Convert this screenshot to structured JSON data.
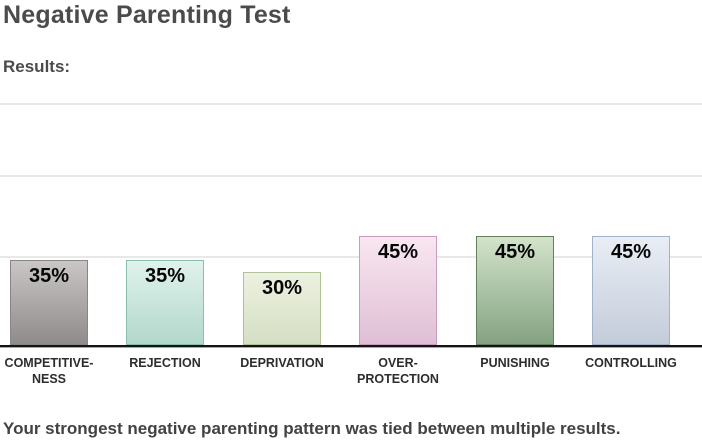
{
  "page": {
    "title": "Negative Parenting Test",
    "results_label": "Results:",
    "footer_text": "Your strongest negative parenting pattern was tied between multiple results."
  },
  "chart_data": {
    "type": "bar",
    "title": "Negative Parenting Test results",
    "categories": [
      "COMPETITIVE-\nNESS",
      "REJECTION",
      "DEPRIVATION",
      "OVER-\nPROTECTION",
      "PUNISHING",
      "CONTROLLING"
    ],
    "values": [
      35,
      35,
      30,
      45,
      45,
      45
    ],
    "value_labels": [
      "35%",
      "35%",
      "30%",
      "45%",
      "45%",
      "45%"
    ],
    "ylim": [
      0,
      100
    ],
    "grid": true,
    "legend_position": "none",
    "bar_styles": [
      {
        "top": "#cac6c6",
        "bottom": "#8f8b8b",
        "border": "#898585"
      },
      {
        "top": "#e0f2ec",
        "bottom": "#b2d8cc",
        "border": "#8abfb0"
      },
      {
        "top": "#ecf1e0",
        "bottom": "#d5dfc3",
        "border": "#b2c297"
      },
      {
        "top": "#f9e7f1",
        "bottom": "#dfbfd5",
        "border": "#ca9cbc"
      },
      {
        "top": "#d3e3ca",
        "bottom": "#84a282",
        "border": "#64815f"
      },
      {
        "top": "#e9eef5",
        "bottom": "#c4ccda",
        "border": "#a2b2ca"
      }
    ]
  }
}
